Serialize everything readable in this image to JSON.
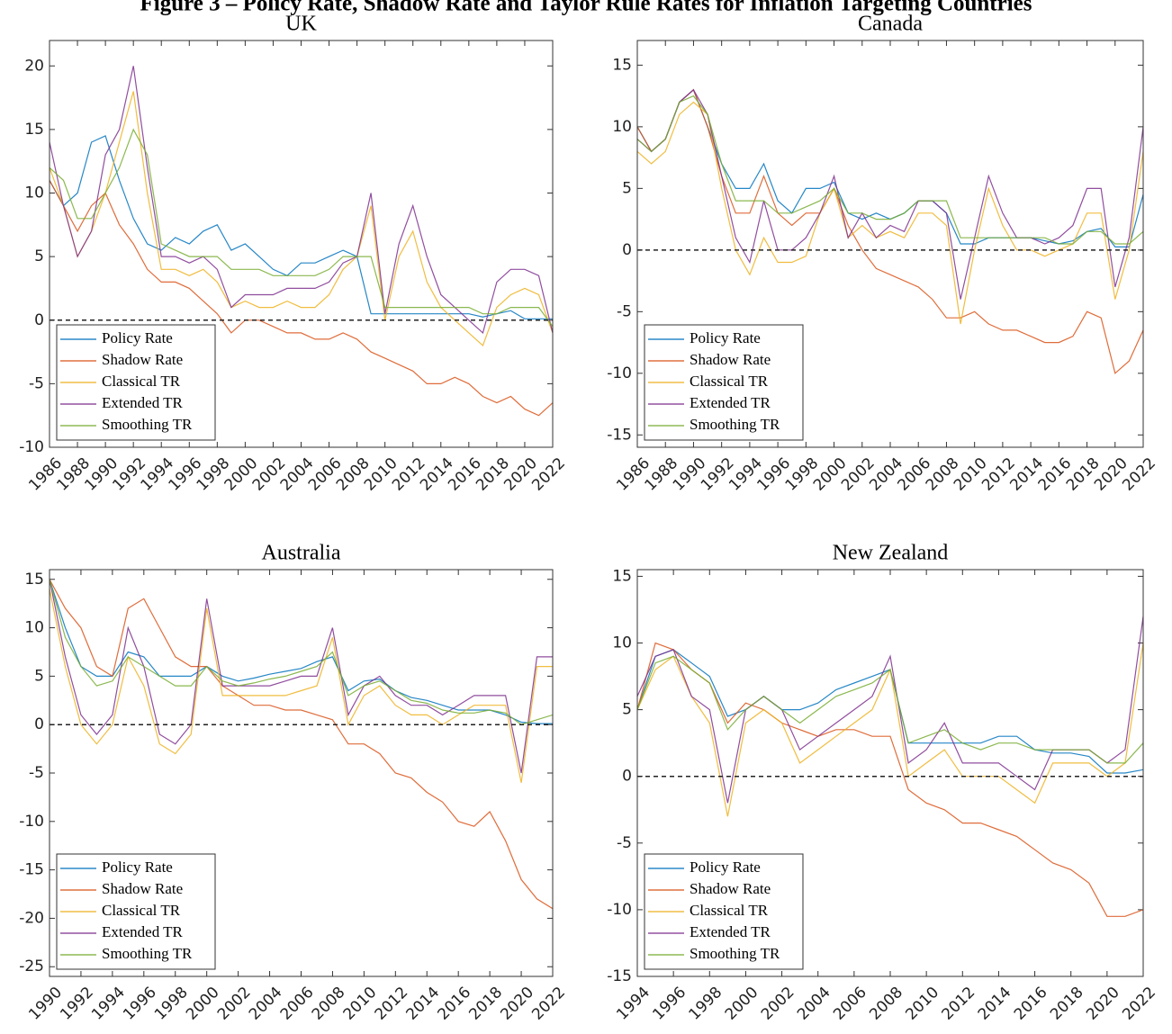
{
  "figure_title": "Figure 3 – Policy Rate, Shadow Rate and Taylor Rule Rates for Inflation Targeting Countries",
  "chart_data": [
    {
      "type": "line",
      "title": "UK",
      "xlim": [
        1986,
        2022
      ],
      "ylim": [
        -10,
        22
      ],
      "xticks": [
        1986,
        1988,
        1990,
        1992,
        1994,
        1996,
        1998,
        2000,
        2002,
        2004,
        2006,
        2008,
        2010,
        2012,
        2014,
        2016,
        2018,
        2020,
        2022
      ],
      "yticks": [
        -10,
        -5,
        0,
        5,
        10,
        15,
        20
      ],
      "hline": 0,
      "legend": "lower left",
      "x": [
        1986,
        1987,
        1988,
        1989,
        1990,
        1991,
        1992,
        1993,
        1994,
        1995,
        1996,
        1997,
        1998,
        1999,
        2000,
        2001,
        2002,
        2003,
        2004,
        2005,
        2006,
        2007,
        2008,
        2009,
        2010,
        2011,
        2012,
        2013,
        2014,
        2015,
        2016,
        2017,
        2018,
        2019,
        2020,
        2021,
        2022
      ],
      "series": [
        {
          "name": "Policy Rate",
          "color": "#0072bd",
          "values": [
            11,
            9,
            10,
            14,
            14.5,
            11,
            8,
            6,
            5.5,
            6.5,
            6,
            7,
            7.5,
            5.5,
            6,
            5,
            4,
            3.5,
            4.5,
            4.5,
            5,
            5.5,
            5,
            0.5,
            0.5,
            0.5,
            0.5,
            0.5,
            0.5,
            0.5,
            0.5,
            0.25,
            0.5,
            0.75,
            0.1,
            0.1,
            0.1
          ]
        },
        {
          "name": "Shadow Rate",
          "color": "#d95319",
          "values": [
            11,
            9,
            7,
            9,
            10,
            7.5,
            6,
            4,
            3,
            3,
            2.5,
            1.5,
            0.5,
            -1,
            0,
            0,
            -0.5,
            -1,
            -1,
            -1.5,
            -1.5,
            -1,
            -1.5,
            -2.5,
            -3,
            -3.5,
            -4,
            -5,
            -5,
            -4.5,
            -5,
            -6,
            -6.5,
            -6,
            -7,
            -7.5,
            -6.5
          ]
        },
        {
          "name": "Classical TR",
          "color": "#edb120",
          "values": [
            12,
            9,
            5,
            7,
            10,
            14,
            18,
            10,
            4,
            4,
            3.5,
            4,
            3,
            1,
            1.5,
            1,
            1,
            1.5,
            1,
            1,
            2,
            4,
            5,
            9,
            0,
            5,
            7,
            3,
            1,
            0,
            -1,
            -2,
            1,
            2,
            2.5,
            2,
            -1
          ]
        },
        {
          "name": "Extended TR",
          "color": "#7e2f8e",
          "values": [
            14,
            9,
            5,
            7,
            13,
            15,
            20,
            12,
            5,
            5,
            4.5,
            5,
            4,
            1,
            2,
            2,
            2,
            2.5,
            2.5,
            2.5,
            3,
            4.5,
            5,
            10,
            0.5,
            6,
            9,
            5,
            2,
            1,
            0,
            -1,
            3,
            4,
            4,
            3.5,
            -1
          ]
        },
        {
          "name": "Smoothing TR",
          "color": "#77ac30",
          "values": [
            12,
            11,
            8,
            8,
            10,
            12,
            15,
            13,
            6,
            5.5,
            5,
            5,
            5,
            4,
            4,
            4,
            3.5,
            3.5,
            3.5,
            3.5,
            4,
            5,
            5,
            5,
            1,
            1,
            1,
            1,
            1,
            1,
            1,
            0.5,
            0.5,
            1,
            1,
            1,
            -0.5
          ]
        }
      ]
    },
    {
      "type": "line",
      "title": "Canada",
      "xlim": [
        1986,
        2022
      ],
      "ylim": [
        -16,
        17
      ],
      "xticks": [
        1986,
        1988,
        1990,
        1992,
        1994,
        1996,
        1998,
        2000,
        2002,
        2004,
        2006,
        2008,
        2010,
        2012,
        2014,
        2016,
        2018,
        2020,
        2022
      ],
      "yticks": [
        -15,
        -10,
        -5,
        0,
        5,
        10,
        15
      ],
      "hline": 0,
      "legend": "lower left",
      "x": [
        1986,
        1987,
        1988,
        1989,
        1990,
        1991,
        1992,
        1993,
        1994,
        1995,
        1996,
        1997,
        1998,
        1999,
        2000,
        2001,
        2002,
        2003,
        2004,
        2005,
        2006,
        2007,
        2008,
        2009,
        2010,
        2011,
        2012,
        2013,
        2014,
        2015,
        2016,
        2017,
        2018,
        2019,
        2020,
        2021,
        2022
      ],
      "series": [
        {
          "name": "Policy Rate",
          "color": "#0072bd",
          "values": [
            10,
            8,
            9,
            12,
            13,
            10,
            7,
            5,
            5,
            7,
            4,
            3,
            5,
            5,
            5.5,
            3,
            2.5,
            3,
            2.5,
            3,
            4,
            4,
            3,
            0.5,
            0.5,
            1,
            1,
            1,
            1,
            0.75,
            0.5,
            0.75,
            1.5,
            1.75,
            0.25,
            0.25,
            4.5
          ]
        },
        {
          "name": "Shadow Rate",
          "color": "#d95319",
          "values": [
            10,
            8,
            9,
            12,
            13,
            10,
            6,
            3,
            3,
            6,
            3,
            2,
            3,
            3,
            5,
            2,
            0,
            -1.5,
            -2,
            -2.5,
            -3,
            -4,
            -5.5,
            -5.5,
            -5,
            -6,
            -6.5,
            -6.5,
            -7,
            -7.5,
            -7.5,
            -7,
            -5,
            -5.5,
            -10,
            -9,
            -6.5
          ]
        },
        {
          "name": "Classical TR",
          "color": "#edb120",
          "values": [
            8,
            7,
            8,
            11,
            12,
            11,
            5,
            0,
            -2,
            1,
            -1,
            -1,
            -0.5,
            3,
            5,
            1,
            2,
            1,
            1.5,
            1,
            3,
            3,
            2,
            -6,
            0,
            5,
            2,
            0,
            0,
            -0.5,
            0,
            0.5,
            3,
            3,
            -4,
            0,
            8
          ]
        },
        {
          "name": "Extended TR",
          "color": "#7e2f8e",
          "values": [
            9,
            8,
            9,
            12,
            13,
            11,
            6,
            1,
            -1,
            4,
            0,
            0,
            1,
            3,
            6,
            1,
            3,
            1,
            2,
            1.5,
            4,
            4,
            3,
            -4,
            1,
            6,
            3,
            1,
            1,
            0.5,
            1,
            2,
            5,
            5,
            -3,
            1,
            10
          ]
        },
        {
          "name": "Smoothing TR",
          "color": "#77ac30",
          "values": [
            9,
            8,
            9,
            12,
            12.5,
            11,
            7,
            4,
            4,
            4,
            3,
            3,
            3.5,
            4,
            5,
            3,
            3,
            2.5,
            2.5,
            3,
            4,
            4,
            4,
            1,
            1,
            1,
            1,
            1,
            1,
            1,
            0.5,
            0.5,
            1.5,
            1.5,
            0.5,
            0.5,
            1.5
          ]
        }
      ]
    },
    {
      "type": "line",
      "title": "Australia",
      "xlim": [
        1990,
        2022
      ],
      "ylim": [
        -26,
        16
      ],
      "xticks": [
        1990,
        1992,
        1994,
        1996,
        1998,
        2000,
        2002,
        2004,
        2006,
        2008,
        2010,
        2012,
        2014,
        2016,
        2018,
        2020,
        2022
      ],
      "yticks": [
        -25,
        -20,
        -15,
        -10,
        -5,
        0,
        5,
        10,
        15
      ],
      "hline": 0,
      "legend": "lower left",
      "x": [
        1990,
        1991,
        1992,
        1993,
        1994,
        1995,
        1996,
        1997,
        1998,
        1999,
        2000,
        2001,
        2002,
        2003,
        2004,
        2005,
        2006,
        2007,
        2008,
        2009,
        2010,
        2011,
        2012,
        2013,
        2014,
        2015,
        2016,
        2017,
        2018,
        2019,
        2020,
        2021,
        2022
      ],
      "series": [
        {
          "name": "Policy Rate",
          "color": "#0072bd",
          "values": [
            15,
            10,
            6,
            5,
            5,
            7.5,
            7,
            5,
            5,
            5,
            6,
            5,
            4.5,
            4.8,
            5.2,
            5.5,
            5.8,
            6.5,
            7,
            3.5,
            4.5,
            4.7,
            3.5,
            2.8,
            2.5,
            2,
            1.5,
            1.5,
            1.5,
            1,
            0.25,
            0.1,
            0.1
          ]
        },
        {
          "name": "Shadow Rate",
          "color": "#d95319",
          "values": [
            15,
            12,
            10,
            6,
            5,
            12,
            13,
            10,
            7,
            6,
            6,
            4,
            3,
            2,
            2,
            1.5,
            1.5,
            1,
            0.5,
            -2,
            -2,
            -3,
            -5,
            -5.5,
            -7,
            -8,
            -10,
            -10.5,
            -9,
            -12,
            -16,
            -18,
            -19
          ]
        },
        {
          "name": "Classical TR",
          "color": "#edb120",
          "values": [
            14,
            6,
            0,
            -2,
            0,
            7,
            4,
            -2,
            -3,
            -1,
            12,
            3,
            3,
            3,
            3,
            3,
            3.5,
            4,
            9,
            0,
            3,
            4,
            2,
            1,
            1,
            0,
            1,
            2,
            2,
            2,
            -6,
            6,
            6
          ]
        },
        {
          "name": "Extended TR",
          "color": "#7e2f8e",
          "values": [
            15,
            7,
            1,
            -1,
            1,
            10,
            6,
            -1,
            -2,
            0,
            13,
            4,
            4,
            4,
            4,
            4.5,
            5,
            5,
            10,
            1,
            4,
            5,
            3,
            2,
            2,
            1,
            2,
            3,
            3,
            3,
            -5,
            7,
            7
          ]
        },
        {
          "name": "Smoothing TR",
          "color": "#77ac30",
          "values": [
            15,
            9,
            6,
            4,
            4.5,
            7,
            6,
            5,
            4,
            4,
            6,
            4.5,
            4,
            4.3,
            4.7,
            5,
            5.5,
            6,
            7.5,
            3,
            4,
            4.5,
            3.5,
            2.5,
            2.2,
            1.5,
            1.2,
            1.2,
            1.5,
            1.2,
            0,
            0.5,
            1
          ]
        }
      ]
    },
    {
      "type": "line",
      "title": "New Zealand",
      "xlim": [
        1994,
        2022
      ],
      "ylim": [
        -15,
        15.5
      ],
      "xticks": [
        1994,
        1996,
        1998,
        2000,
        2002,
        2004,
        2006,
        2008,
        2010,
        2012,
        2014,
        2016,
        2018,
        2020,
        2022
      ],
      "yticks": [
        -15,
        -10,
        -5,
        0,
        5,
        10,
        15
      ],
      "hline": 0,
      "legend": "lower left",
      "x": [
        1994,
        1995,
        1996,
        1997,
        1998,
        1999,
        2000,
        2001,
        2002,
        2003,
        2004,
        2005,
        2006,
        2007,
        2008,
        2009,
        2010,
        2011,
        2012,
        2013,
        2014,
        2015,
        2016,
        2017,
        2018,
        2019,
        2020,
        2021,
        2022
      ],
      "series": [
        {
          "name": "Policy Rate",
          "color": "#0072bd",
          "values": [
            5,
            9,
            9.5,
            8.5,
            7.5,
            4.5,
            5,
            6,
            5,
            5,
            5.5,
            6.5,
            7,
            7.5,
            8,
            2.5,
            2.5,
            2.5,
            2.5,
            2.5,
            3,
            3,
            2,
            1.75,
            1.75,
            1.5,
            0.25,
            0.25,
            0.5
          ]
        },
        {
          "name": "Shadow Rate",
          "color": "#d95319",
          "values": [
            5,
            10,
            9.5,
            8,
            7,
            4,
            5.5,
            5,
            4,
            3.5,
            3,
            3.5,
            3.5,
            3,
            3,
            -1,
            -2,
            -2.5,
            -3.5,
            -3.5,
            -4,
            -4.5,
            -5.5,
            -6.5,
            -7,
            -8,
            -10.5,
            -10.5,
            -10
          ]
        },
        {
          "name": "Classical TR",
          "color": "#edb120",
          "values": [
            5,
            8,
            9,
            6,
            4,
            -3,
            4,
            5,
            4,
            1,
            2,
            3,
            4,
            5,
            8,
            0,
            1,
            2,
            0,
            0,
            0,
            -1,
            -2,
            1,
            1,
            1,
            0,
            1,
            10
          ]
        },
        {
          "name": "Extended TR",
          "color": "#7e2f8e",
          "values": [
            6,
            9,
            9.5,
            6,
            5,
            -2,
            5,
            6,
            5,
            2,
            3,
            4,
            5,
            6,
            9,
            1,
            2,
            4,
            1,
            1,
            1,
            0,
            -1,
            2,
            2,
            2,
            1,
            2,
            12
          ]
        },
        {
          "name": "Smoothing TR",
          "color": "#77ac30",
          "values": [
            5,
            8.5,
            9,
            8,
            7,
            3.5,
            5,
            6,
            5,
            4,
            5,
            6,
            6.5,
            7,
            8,
            2.5,
            3,
            3.5,
            2.5,
            2,
            2.5,
            2.5,
            2,
            2,
            2,
            2,
            1,
            1,
            2.5
          ]
        }
      ]
    }
  ]
}
